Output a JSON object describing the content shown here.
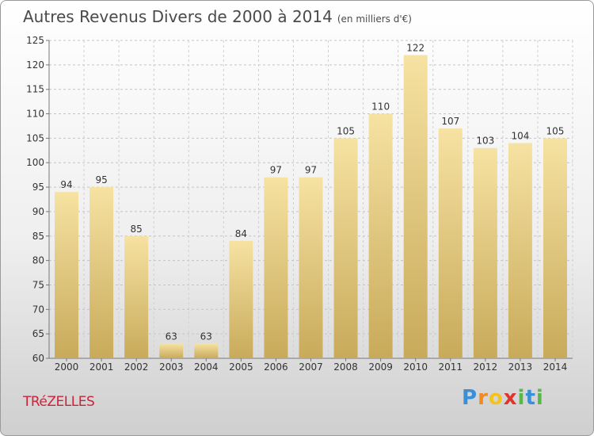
{
  "header": {
    "title": "Autres Revenus Divers de 2000 à 2014",
    "subtitle": "(en milliers d'€)"
  },
  "footer": {
    "place": "TRéZELLES",
    "logo": "Proxiti"
  },
  "colors": {
    "bar_light": "#f6e2a2",
    "bar_dark": "#c8aa5a",
    "place_text": "#d0213b"
  },
  "chart_data": {
    "type": "bar",
    "title": "Autres Revenus Divers de 2000 à 2014",
    "subtitle": "(en milliers d'€)",
    "xlabel": "",
    "ylabel": "",
    "categories": [
      "2000",
      "2001",
      "2002",
      "2003",
      "2004",
      "2005",
      "2006",
      "2007",
      "2008",
      "2009",
      "2010",
      "2011",
      "2012",
      "2013",
      "2014"
    ],
    "values": [
      94,
      95,
      85,
      63,
      63,
      84,
      97,
      97,
      105,
      110,
      122,
      107,
      103,
      104,
      105
    ],
    "ylim": [
      60,
      125
    ],
    "yticks": [
      60,
      65,
      70,
      75,
      80,
      85,
      90,
      95,
      100,
      105,
      110,
      115,
      120,
      125
    ],
    "grid": true,
    "data_labels": true
  }
}
